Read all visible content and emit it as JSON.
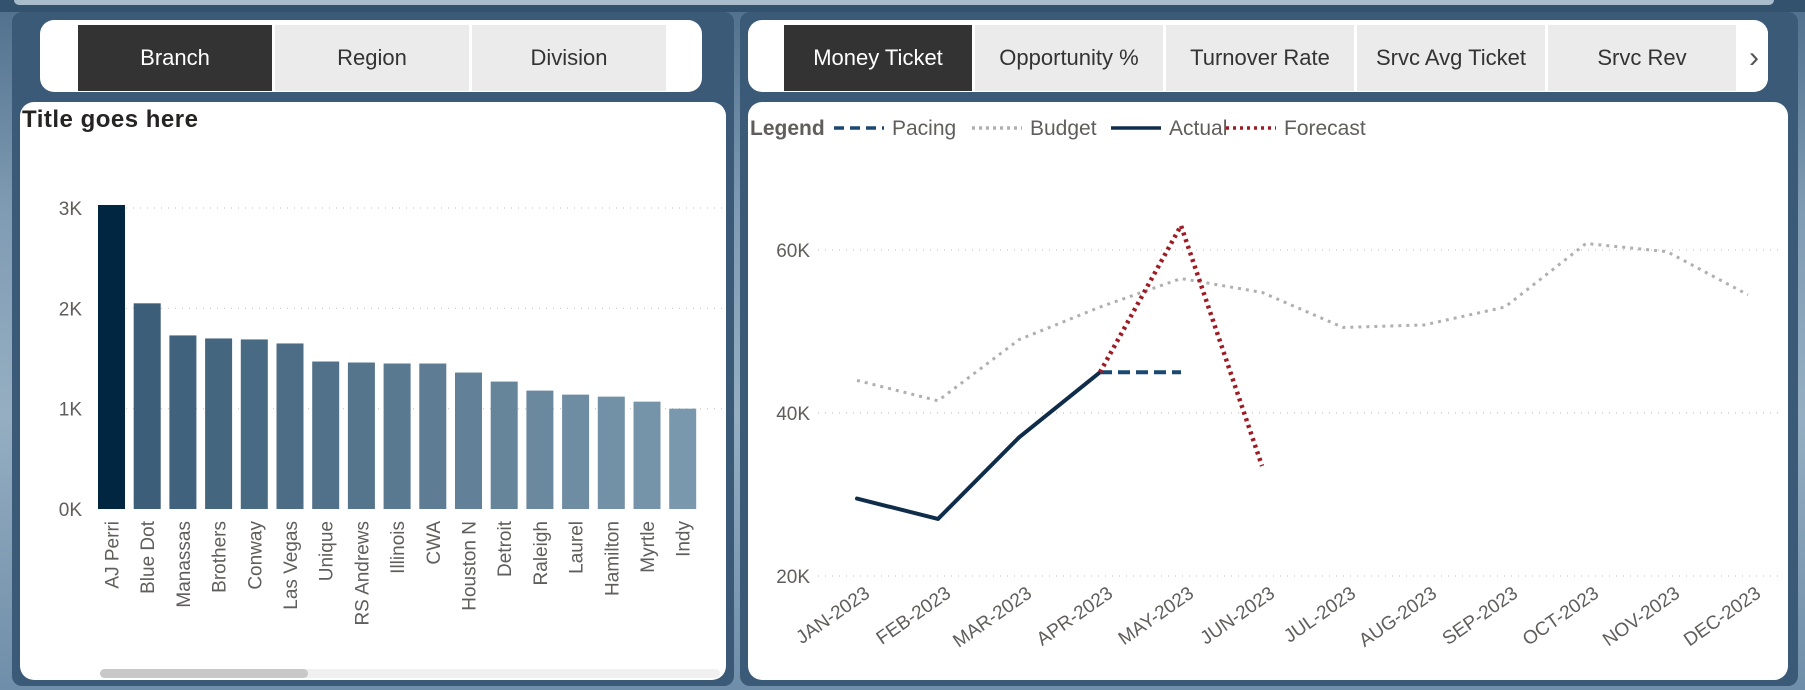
{
  "slicer_left": {
    "tabs": [
      {
        "label": "Branch",
        "active": true
      },
      {
        "label": "Region",
        "active": false
      },
      {
        "label": "Division",
        "active": false
      }
    ]
  },
  "slicer_right": {
    "tabs": [
      {
        "label": "Money Ticket",
        "active": true
      },
      {
        "label": "Opportunity %",
        "active": false
      },
      {
        "label": "Turnover Rate",
        "active": false
      },
      {
        "label": "Srvc Avg Ticket",
        "active": false
      },
      {
        "label": "Srvc Rev",
        "active": false
      }
    ],
    "next_icon": "chevron-right-icon"
  },
  "left_chart_title": "Title goes here",
  "chart_data": [
    {
      "type": "bar",
      "title": "Title goes here",
      "categories": [
        "AJ Perri",
        "Blue Dot",
        "Manassas",
        "Brothers",
        "Conway",
        "Las Vegas",
        "Unique",
        "RS Andrews",
        "Illinois",
        "CWA",
        "Houston N",
        "Detroit",
        "Raleigh",
        "Laurel",
        "Hamilton",
        "Myrtle",
        "Indy"
      ],
      "values": [
        3030,
        2050,
        1730,
        1700,
        1690,
        1650,
        1470,
        1460,
        1450,
        1450,
        1360,
        1270,
        1180,
        1140,
        1120,
        1070,
        1000
      ],
      "yticks": [
        "0K",
        "1K",
        "2K",
        "3K"
      ],
      "ylim": [
        0,
        3000
      ],
      "colors": {
        "first": "#002642",
        "last": "#7a98ad",
        "grid": "#c8c8c8"
      }
    },
    {
      "type": "line",
      "legend_title": "Legend",
      "legend": [
        "Pacing",
        "Budget",
        "Actual",
        "Forecast"
      ],
      "x": [
        "JAN-2023",
        "FEB-2023",
        "MAR-2023",
        "APR-2023",
        "MAY-2023",
        "JUN-2023",
        "JUL-2023",
        "AUG-2023",
        "SEP-2023",
        "OCT-2023",
        "NOV-2023",
        "DEC-2023"
      ],
      "yticks": [
        "20K",
        "40K",
        "60K"
      ],
      "ylim": [
        20000,
        60000
      ],
      "series": [
        {
          "name": "Budget",
          "style": "dotted",
          "color": "#b0b0b0",
          "values": [
            44000,
            41500,
            49000,
            53000,
            56500,
            54800,
            50500,
            50800,
            53000,
            60800,
            59800,
            54500
          ]
        },
        {
          "name": "Actual",
          "style": "solid",
          "color": "#0f2d4a",
          "values": [
            29500,
            27000,
            37000,
            45000,
            null,
            null,
            null,
            null,
            null,
            null,
            null,
            null
          ]
        },
        {
          "name": "Pacing",
          "style": "dashed",
          "color": "#1a4872",
          "values": [
            null,
            null,
            null,
            45000,
            45000,
            null,
            null,
            null,
            null,
            null,
            null,
            null
          ]
        },
        {
          "name": "Forecast",
          "style": "dotted",
          "color": "#9e1b24",
          "values": [
            null,
            null,
            null,
            45000,
            63000,
            33500,
            null,
            null,
            null,
            null,
            null,
            null
          ]
        }
      ]
    }
  ]
}
